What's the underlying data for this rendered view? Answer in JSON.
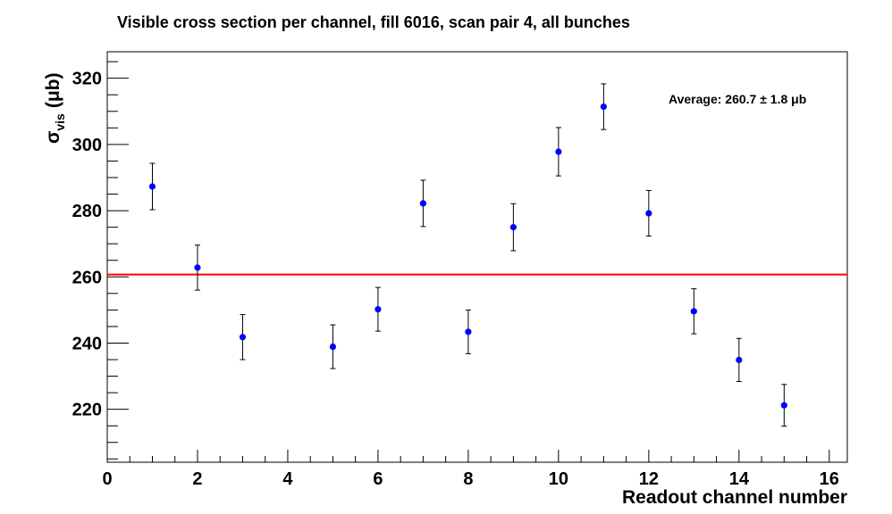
{
  "chart_data": {
    "type": "scatter",
    "title": "Visible cross section per channel, fill 6016, scan pair 4, all bunches",
    "xlabel": "Readout channel number",
    "ylabel": {
      "symbol": "σ",
      "subscript": "vis",
      "unit": "(μb)"
    },
    "xlim": [
      0,
      16.4
    ],
    "ylim": [
      204,
      328
    ],
    "x_ticks": [
      0,
      2,
      4,
      6,
      8,
      10,
      12,
      14,
      16
    ],
    "y_ticks": [
      220,
      240,
      260,
      280,
      300,
      320
    ],
    "grid": false,
    "marker_color": "#0000ff",
    "average_line_color": "#ff0000",
    "points": [
      {
        "x": 1,
        "y": 287.3,
        "err": 7.0
      },
      {
        "x": 2,
        "y": 262.8,
        "err": 6.8
      },
      {
        "x": 3,
        "y": 241.8,
        "err": 6.8
      },
      {
        "x": 5,
        "y": 238.9,
        "err": 6.6
      },
      {
        "x": 6,
        "y": 250.2,
        "err": 6.6
      },
      {
        "x": 7,
        "y": 282.2,
        "err": 7.0
      },
      {
        "x": 8,
        "y": 243.4,
        "err": 6.6
      },
      {
        "x": 9,
        "y": 275.0,
        "err": 7.1
      },
      {
        "x": 10,
        "y": 297.8,
        "err": 7.3
      },
      {
        "x": 11,
        "y": 311.4,
        "err": 6.9
      },
      {
        "x": 12,
        "y": 279.2,
        "err": 6.9
      },
      {
        "x": 13,
        "y": 249.6,
        "err": 6.8
      },
      {
        "x": 14,
        "y": 234.9,
        "err": 6.5
      },
      {
        "x": 15,
        "y": 221.2,
        "err": 6.3
      }
    ],
    "average": {
      "value": 260.7,
      "label": "Average: 260.7 ± 1.8 μb"
    }
  }
}
